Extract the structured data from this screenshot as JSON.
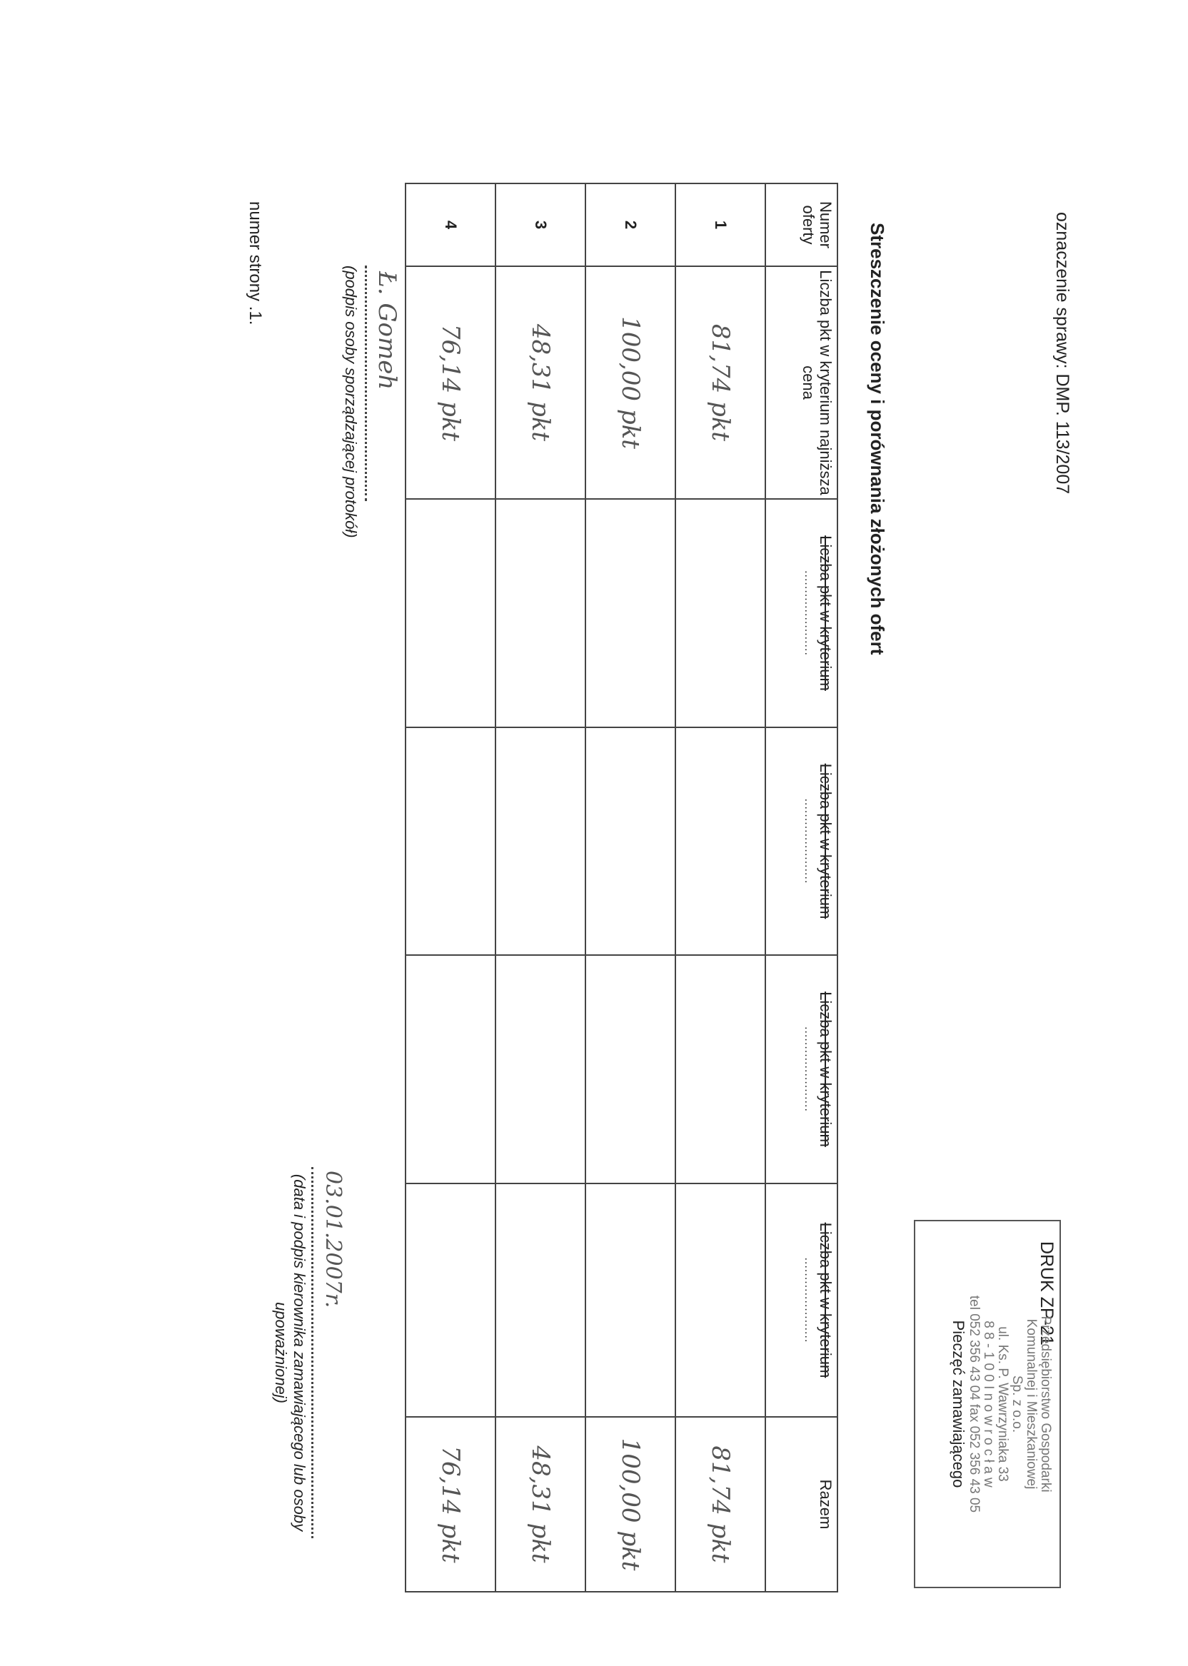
{
  "header": {
    "case_label": "oznaczenie sprawy: DMP. 113/2007",
    "form_code": "DRUK ZP-21"
  },
  "stamp": {
    "lines": [
      "Przedsiębiorstwo Gospodarki",
      "Komunalnej i Mieszkaniowej",
      "Sp. z o.o.",
      "ul. Ks. P. Wawrzyniaka 33",
      "8 8 - 1 0 0  I n o w r o c ł a w",
      "tel 052 356 43 04 fax 052 356 43 05"
    ],
    "caption": "Pieczęć zamawiającego"
  },
  "title": "Streszczenie oceny i porównania złożonych ofert",
  "table": {
    "columns": [
      {
        "label": "Numer oferty"
      },
      {
        "label": "Liczba pkt w kryterium najniższa cena"
      },
      {
        "label": "Liczba pkt w kryterium",
        "sub": "......................"
      },
      {
        "label": "Liczba pkt w kryterium",
        "sub": "......................"
      },
      {
        "label": "Liczba pkt w kryterium",
        "sub": "......................"
      },
      {
        "label": "Liczba pkt w kryterium",
        "sub": "......................"
      },
      {
        "label": "Razem"
      }
    ],
    "rows": [
      {
        "number": "1",
        "price_points": "81,74 pkt",
        "total": "81,74 pkt"
      },
      {
        "number": "2",
        "price_points": "100,00 pkt",
        "total": "100,00 pkt"
      },
      {
        "number": "3",
        "price_points": "48,31 pkt",
        "total": "48,31 pkt"
      },
      {
        "number": "4",
        "price_points": "76,14 pkt",
        "total": "76,14 pkt"
      }
    ]
  },
  "footer": {
    "preparer_signature": "Ł. Gomeh",
    "preparer_caption": "(podpis osoby sporządzającej protokół)",
    "date_handwritten": "03.01.2007r.",
    "manager_caption": "(data i podpis kierownika zamawiającego lub osoby upoważnionej)",
    "page_number": "numer strony .1."
  }
}
